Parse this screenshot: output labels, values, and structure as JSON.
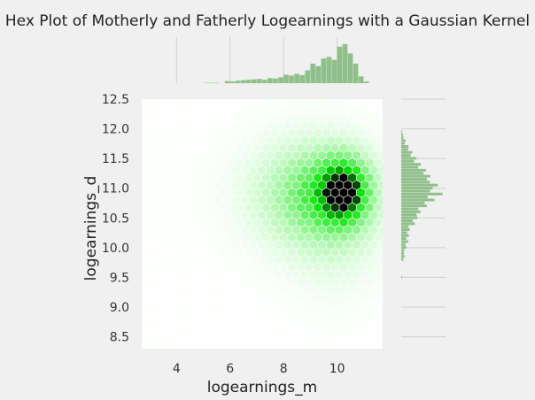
{
  "chart_data": {
    "type": "hexbin",
    "title": "Hex Plot of Motherly and Fatherly Logearnings with a Gaussian Kernel",
    "xlabel": "logearnings_m",
    "ylabel": "logearnings_d",
    "xlim": [
      2.7,
      11.7
    ],
    "ylim": [
      8.3,
      12.5
    ],
    "x_ticks": [
      "4",
      "6",
      "8",
      "10"
    ],
    "x_tick_values": [
      4,
      6,
      8,
      10
    ],
    "y_ticks": [
      "8.5",
      "9.0",
      "9.5",
      "10.0",
      "10.5",
      "11.0",
      "11.5",
      "12.0",
      "12.5"
    ],
    "y_tick_values": [
      8.5,
      9.0,
      9.5,
      10.0,
      10.5,
      11.0,
      11.5,
      12.0,
      12.5
    ],
    "hex_color_low": "#ffffff",
    "hex_color_mid": "#00e600",
    "hex_color_high": "#000000",
    "density_peak": {
      "x": 10.4,
      "y": 11.0
    },
    "marginal_color": "#8fbf8a",
    "x_marginal": {
      "bins": [
        5.1,
        5.3,
        5.5,
        5.7,
        5.9,
        6.1,
        6.3,
        6.5,
        6.7,
        6.9,
        7.1,
        7.3,
        7.5,
        7.7,
        7.9,
        8.1,
        8.3,
        8.5,
        8.7,
        8.9,
        9.1,
        9.3,
        9.5,
        9.7,
        9.9,
        10.1,
        10.3,
        10.5,
        10.7,
        10.9,
        11.1
      ],
      "heights": [
        0.01,
        0.01,
        0.01,
        0.0,
        0.05,
        0.04,
        0.06,
        0.07,
        0.08,
        0.09,
        0.1,
        0.08,
        0.12,
        0.11,
        0.14,
        0.2,
        0.18,
        0.22,
        0.19,
        0.3,
        0.46,
        0.4,
        0.58,
        0.62,
        0.55,
        0.86,
        0.92,
        0.7,
        0.46,
        0.16,
        0.04
      ]
    },
    "y_marginal": {
      "bins": [
        9.5,
        9.55,
        9.6,
        9.65,
        9.7,
        9.75,
        9.8,
        9.85,
        9.9,
        9.95,
        10.0,
        10.05,
        10.1,
        10.15,
        10.2,
        10.25,
        10.3,
        10.35,
        10.4,
        10.45,
        10.5,
        10.55,
        10.6,
        10.65,
        10.7,
        10.75,
        10.8,
        10.85,
        10.9,
        10.95,
        11.0,
        11.05,
        11.1,
        11.15,
        11.2,
        11.25,
        11.3,
        11.35,
        11.4,
        11.45,
        11.5,
        11.55,
        11.6,
        11.65,
        11.7,
        11.75,
        11.8,
        11.85,
        11.9,
        11.95
      ],
      "heights": [
        0.02,
        0.0,
        0.0,
        0.0,
        0.0,
        0.0,
        0.05,
        0.08,
        0.06,
        0.07,
        0.12,
        0.1,
        0.16,
        0.12,
        0.18,
        0.14,
        0.2,
        0.17,
        0.32,
        0.27,
        0.38,
        0.36,
        0.45,
        0.4,
        0.6,
        0.55,
        0.78,
        0.62,
        0.97,
        0.68,
        0.74,
        0.86,
        0.67,
        0.6,
        0.68,
        0.52,
        0.58,
        0.4,
        0.46,
        0.3,
        0.35,
        0.22,
        0.26,
        0.16,
        0.17,
        0.08,
        0.1,
        0.05,
        0.04,
        0.02
      ]
    }
  }
}
